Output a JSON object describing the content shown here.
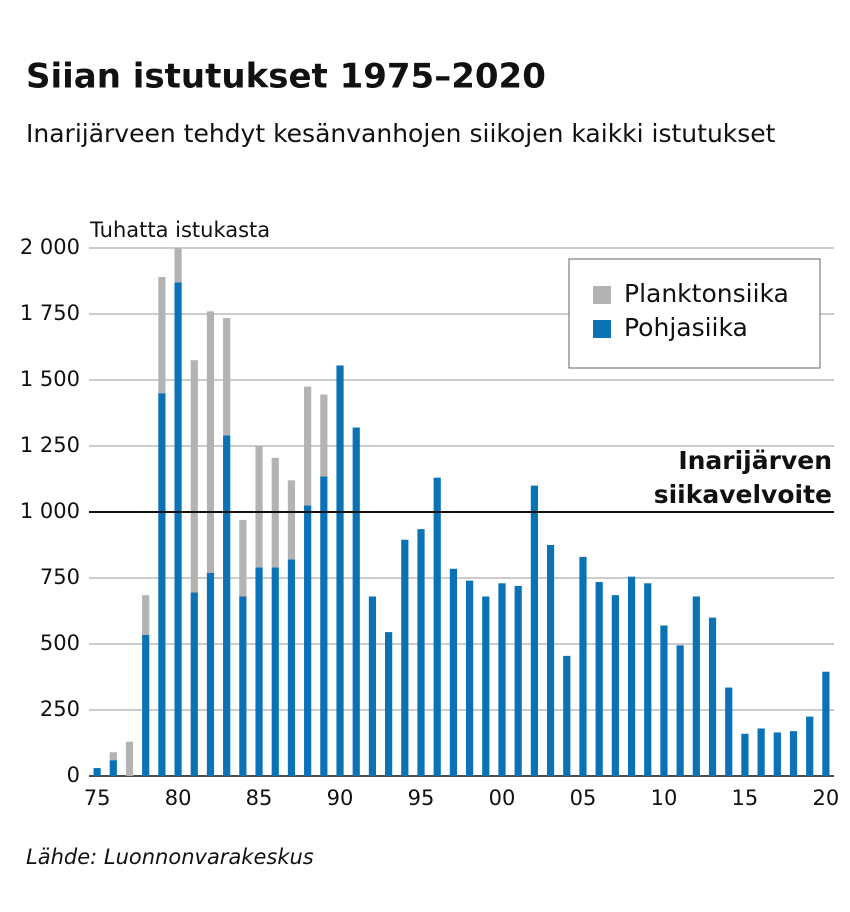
{
  "chart_data": {
    "type": "stacked_bar",
    "title": "Siian istutukset 1975–2020",
    "subtitle": "Inarijärveen tehdyt kesänvanhojen siikojen kaikki istutukset",
    "y_axis_label": "Tuhatta istukasta",
    "source": "Lähde: Luonnonvarakeskus",
    "categories": [
      "75",
      null,
      null,
      null,
      null,
      "80",
      null,
      null,
      null,
      null,
      "85",
      null,
      null,
      null,
      null,
      "90",
      null,
      null,
      null,
      null,
      "95",
      null,
      null,
      null,
      null,
      "00",
      null,
      null,
      null,
      null,
      "05",
      null,
      null,
      null,
      null,
      "10",
      null,
      null,
      null,
      null,
      "15",
      null,
      null,
      null,
      null,
      "20"
    ],
    "series": [
      {
        "name": "Pohjasiika",
        "color": "#0a72b5",
        "values": [
          30,
          60,
          0,
          535,
          1450,
          1870,
          695,
          770,
          1290,
          680,
          790,
          790,
          820,
          1025,
          1135,
          1555,
          1320,
          680,
          545,
          895,
          935,
          1130,
          785,
          740,
          680,
          730,
          720,
          1100,
          875,
          455,
          830,
          735,
          685,
          755,
          730,
          570,
          495,
          680,
          600,
          335,
          160,
          180,
          165,
          170,
          225,
          395
        ]
      },
      {
        "name": "Planktonsiika",
        "color": "#b3b3b3",
        "values": [
          0,
          30,
          130,
          150,
          440,
          130,
          880,
          990,
          445,
          290,
          460,
          415,
          300,
          450,
          310,
          0,
          0,
          0,
          0,
          0,
          0,
          0,
          0,
          0,
          0,
          0,
          0,
          0,
          0,
          0,
          0,
          0,
          0,
          0,
          0,
          0,
          0,
          0,
          0,
          0,
          0,
          0,
          0,
          0,
          0,
          0
        ]
      }
    ],
    "ylim": [
      0,
      2000
    ],
    "yticks": [
      0,
      250,
      500,
      750,
      {
        "value": 1000,
        "label": "1 000"
      },
      {
        "value": 1250,
        "label": "1 250"
      },
      {
        "value": 1500,
        "label": "1 500"
      },
      {
        "value": 1750,
        "label": "1 750"
      },
      {
        "value": 2000,
        "label": "2 000"
      }
    ],
    "grid": true,
    "legend": "upper right",
    "reference_line": {
      "value": 1000,
      "label": [
        "Inarijärven",
        "siikavelvoite"
      ]
    }
  }
}
